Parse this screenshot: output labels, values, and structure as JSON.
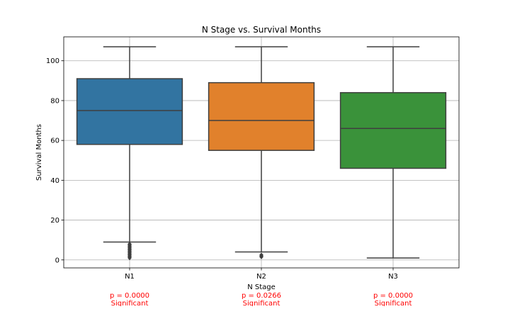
{
  "chart_data": {
    "type": "box",
    "title": "N Stage vs. Survival Months",
    "xlabel": "N Stage",
    "ylabel": "Survival Months",
    "ylim": [
      -4,
      112
    ],
    "yticks": [
      0,
      20,
      40,
      60,
      80,
      100
    ],
    "grid": true,
    "categories": [
      "N1",
      "N2",
      "N3"
    ],
    "boxes": [
      {
        "category": "N1",
        "whisker_low": 9,
        "q1": 58,
        "median": 75,
        "q3": 91,
        "whisker_high": 107,
        "outliers": [
          1,
          1.5,
          2,
          2.5,
          3,
          3.5,
          4,
          4.5,
          5,
          5.5,
          6,
          6.5,
          7,
          7.5,
          8
        ],
        "color": "#3274a1"
      },
      {
        "category": "N2",
        "whisker_low": 4,
        "q1": 55,
        "median": 70,
        "q3": 89,
        "whisker_high": 107,
        "outliers": [
          1.5,
          2,
          2.5
        ],
        "color": "#e1812c"
      },
      {
        "category": "N3",
        "whisker_low": 1,
        "q1": 46,
        "median": 66,
        "q3": 84,
        "whisker_high": 107,
        "outliers": [],
        "color": "#3a923a"
      }
    ],
    "annotations": [
      {
        "category": "N1",
        "p_text": "p = 0.0000",
        "sig_text": "Significant"
      },
      {
        "category": "N2",
        "p_text": "p = 0.0266",
        "sig_text": "Significant"
      },
      {
        "category": "N3",
        "p_text": "p = 0.0000",
        "sig_text": "Significant"
      }
    ],
    "annotation_color": "#ff0000",
    "line_color": "#3f3f3f"
  }
}
